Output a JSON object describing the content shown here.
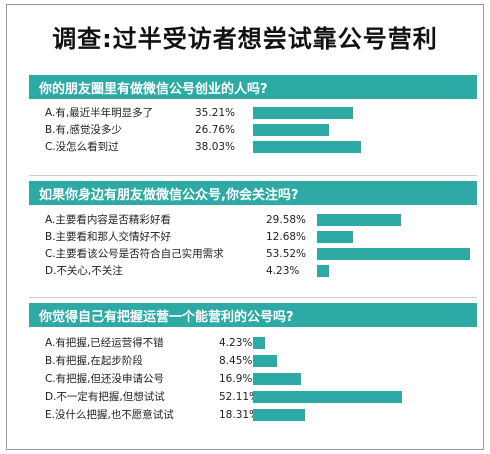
{
  "title": "调查:过半受访者想尝试靠公号营利",
  "colors": {
    "bar": "#2eaaa6",
    "band": "#2eaaa6"
  },
  "chart_data": [
    {
      "type": "bar",
      "title": "你的朋友圈里有做微信公号创业的人吗?",
      "categories": [
        "A.有,最近半年明显多了",
        "B.有,感觉没多少",
        "C.没怎么看到过"
      ],
      "values": [
        35.21,
        26.76,
        38.03
      ],
      "value_labels": [
        "35.21%",
        "26.76%",
        "38.03%"
      ]
    },
    {
      "type": "bar",
      "title": "如果你身边有朋友做微信公众号,你会关注吗?",
      "categories": [
        "A.主要看内容是否精彩好看",
        "B.主要看和那人交情好不好",
        "C.主要看该公号是否符合自己实用需求",
        "D.不关心,不关注"
      ],
      "values": [
        29.58,
        12.68,
        53.52,
        4.23
      ],
      "value_labels": [
        "29.58%",
        "12.68%",
        "53.52%",
        "4.23%"
      ]
    },
    {
      "type": "bar",
      "title": "你觉得自己有把握运营一个能营利的公号吗?",
      "categories": [
        "A.有把握,已经运营得不错",
        "B.有把握,在起步阶段",
        "C.有把握,但还没申请公号",
        "D.不一定有把握,但想试试",
        "E.没什么把握,也不愿意试试"
      ],
      "values": [
        4.23,
        8.45,
        16.9,
        52.11,
        18.31
      ],
      "value_labels": [
        "4.23%",
        "8.45%",
        "16.9%",
        "52.11%",
        "18.31%"
      ]
    }
  ]
}
